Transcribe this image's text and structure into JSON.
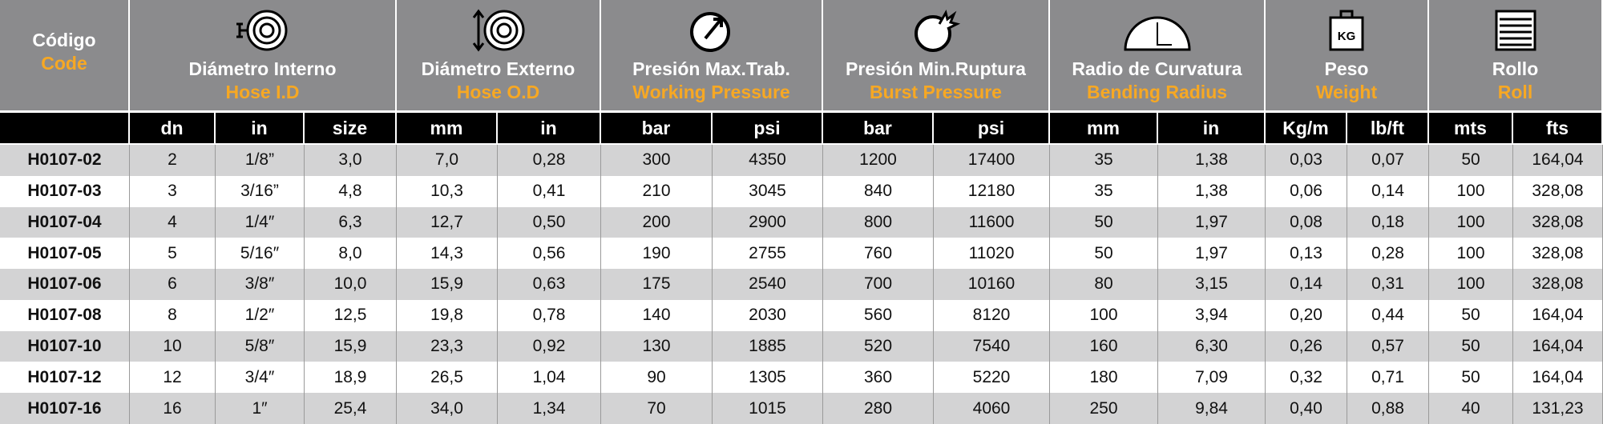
{
  "header": {
    "groups": [
      {
        "title": "Código",
        "subtitle": "Code",
        "units": []
      },
      {
        "title": "Diámetro Interno",
        "subtitle": "Hose I.D",
        "units": [
          "dn",
          "in",
          "size"
        ]
      },
      {
        "title": "Diámetro Externo",
        "subtitle": "Hose O.D",
        "units": [
          "mm",
          "in"
        ]
      },
      {
        "title": "Presión Max.Trab.",
        "subtitle": "Working Pressure",
        "units": [
          "bar",
          "psi"
        ]
      },
      {
        "title": "Presión Min.Ruptura",
        "subtitle": "Burst Pressure",
        "units": [
          "bar",
          "psi"
        ]
      },
      {
        "title": "Radio de Curvatura",
        "subtitle": "Bending Radius",
        "units": [
          "mm",
          "in"
        ]
      },
      {
        "title": "Peso",
        "subtitle": "Weight",
        "units": [
          "Kg/m",
          "lb/ft"
        ],
        "icon_text": "KG"
      },
      {
        "title": "Rollo",
        "subtitle": "Roll",
        "units": [
          "mts",
          "fts"
        ]
      }
    ]
  },
  "table": {
    "rows": [
      [
        "H0107-02",
        "2",
        "1/8”",
        "3,0",
        "7,0",
        "0,28",
        "300",
        "4350",
        "1200",
        "17400",
        "35",
        "1,38",
        "0,03",
        "0,07",
        "50",
        "164,04"
      ],
      [
        "H0107-03",
        "3",
        "3/16”",
        "4,8",
        "10,3",
        "0,41",
        "210",
        "3045",
        "840",
        "12180",
        "35",
        "1,38",
        "0,06",
        "0,14",
        "100",
        "328,08"
      ],
      [
        "H0107-04",
        "4",
        "1/4″",
        "6,3",
        "12,7",
        "0,50",
        "200",
        "2900",
        "800",
        "11600",
        "50",
        "1,97",
        "0,08",
        "0,18",
        "100",
        "328,08"
      ],
      [
        "H0107-05",
        "5",
        "5/16″",
        "8,0",
        "14,3",
        "0,56",
        "190",
        "2755",
        "760",
        "11020",
        "50",
        "1,97",
        "0,13",
        "0,28",
        "100",
        "328,08"
      ],
      [
        "H0107-06",
        "6",
        "3/8″",
        "10,0",
        "15,9",
        "0,63",
        "175",
        "2540",
        "700",
        "10160",
        "80",
        "3,15",
        "0,14",
        "0,31",
        "100",
        "328,08"
      ],
      [
        "H0107-08",
        "8",
        "1/2″",
        "12,5",
        "19,8",
        "0,78",
        "140",
        "2030",
        "560",
        "8120",
        "100",
        "3,94",
        "0,20",
        "0,44",
        "50",
        "164,04"
      ],
      [
        "H0107-10",
        "10",
        "5/8″",
        "15,9",
        "23,3",
        "0,92",
        "130",
        "1885",
        "520",
        "7540",
        "160",
        "6,30",
        "0,26",
        "0,57",
        "50",
        "164,04"
      ],
      [
        "H0107-12",
        "12",
        "3/4″",
        "18,9",
        "26,5",
        "1,04",
        "90",
        "1305",
        "360",
        "5220",
        "180",
        "7,09",
        "0,32",
        "0,71",
        "50",
        "164,04"
      ],
      [
        "H0107-16",
        "16",
        "1″",
        "25,4",
        "34,0",
        "1,34",
        "70",
        "1015",
        "280",
        "4060",
        "250",
        "9,84",
        "0,40",
        "0,88",
        "40",
        "131,23"
      ]
    ]
  }
}
